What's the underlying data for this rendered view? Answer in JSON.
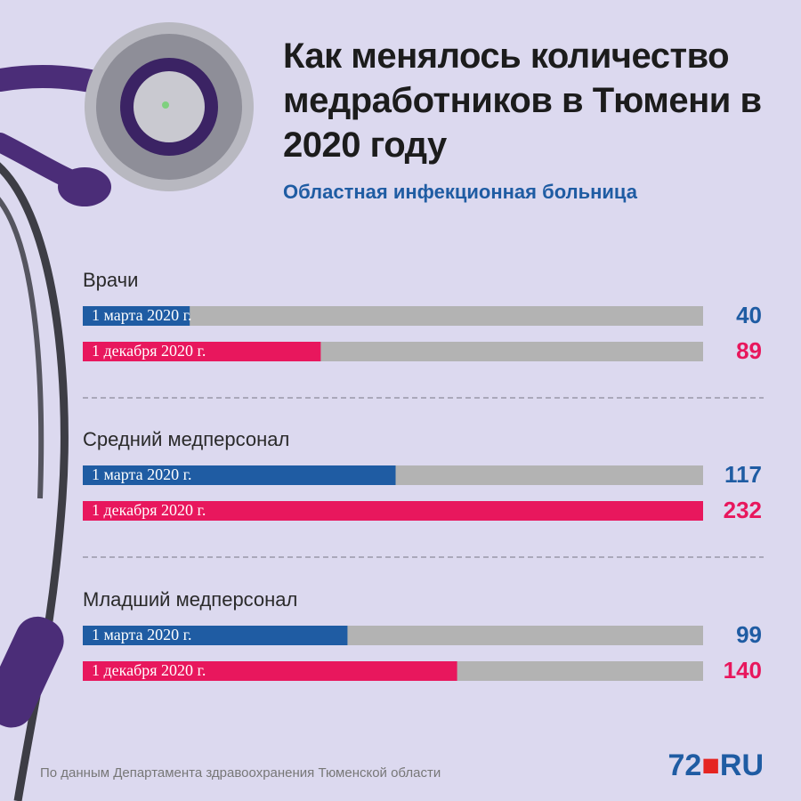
{
  "chart_data": {
    "type": "bar",
    "title": "Как менялось количество медработников в Тюмени в 2020 году",
    "subtitle": "Областная инфекционная больница",
    "categories": [
      "Врачи",
      "Средний медперсонал",
      "Младший медперсонал"
    ],
    "series": [
      {
        "name": "1 марта 2020 г.",
        "color": "#1f5ca3",
        "values": [
          40,
          117,
          99
        ]
      },
      {
        "name": "1 декабря 2020 г.",
        "color": "#e8175d",
        "values": [
          89,
          232,
          140
        ]
      }
    ],
    "xlim": [
      0,
      232
    ],
    "track_color": "#b3b3b3"
  },
  "footer": {
    "source": "По данным Департамента здравоохранения Тюменской области",
    "logo_number": "72",
    "logo_suffix": "RU"
  }
}
